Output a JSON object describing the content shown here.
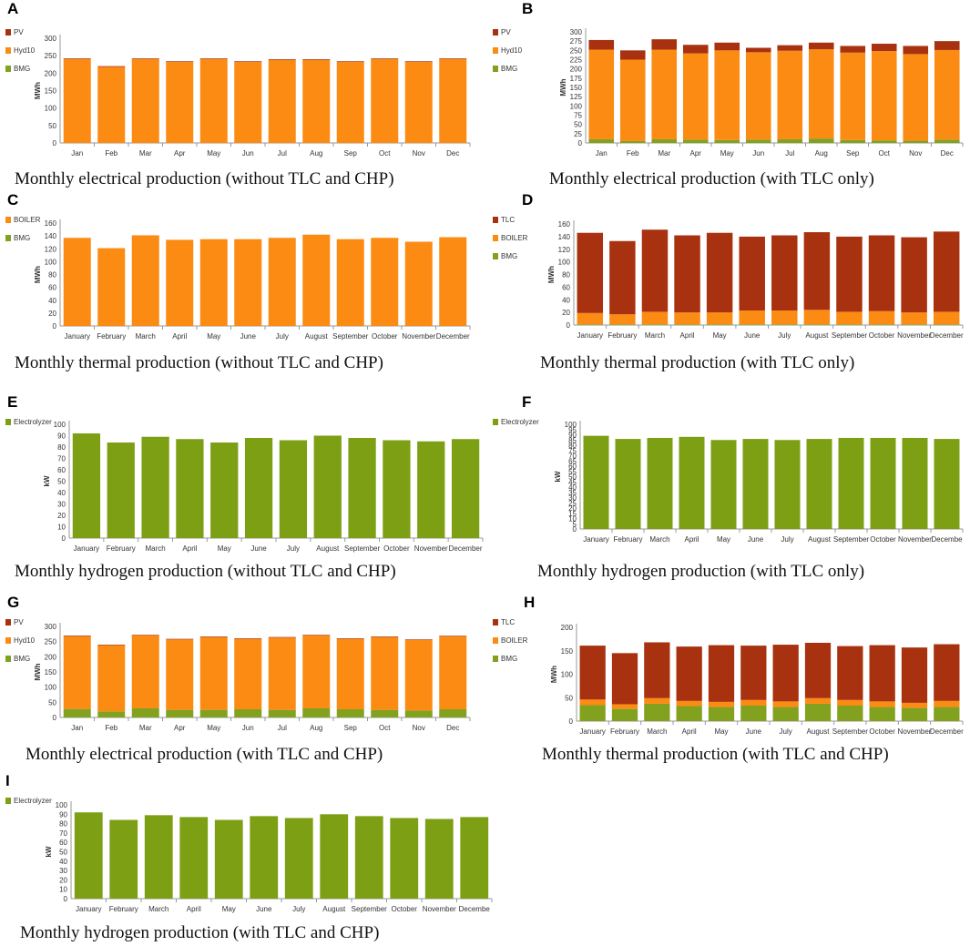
{
  "colors": {
    "PV": "#a8320f",
    "TLC": "#a8320f",
    "Hyd10": "#fb8b13",
    "BOILER": "#fb8b13",
    "BMG": "#82a21f",
    "Electrolyzer": "#7c9f14",
    "axis": "#999999"
  },
  "chart_data": [
    {
      "id": "A",
      "type": "bar",
      "label": "A",
      "caption": "Monthly electrical production (without TLC and CHP)",
      "ylabel": "MWh",
      "ylim": [
        0,
        300
      ],
      "yticks": [
        0,
        50,
        100,
        150,
        200,
        250,
        300
      ],
      "categories": [
        "Jan",
        "Feb",
        "Mar",
        "Apr",
        "May",
        "Jun",
        "Jul",
        "Aug",
        "Sep",
        "Oct",
        "Nov",
        "Dec"
      ],
      "legend": [
        "PV",
        "Hyd10",
        "BMG"
      ],
      "series": [
        {
          "name": "BMG",
          "values": [
            0,
            0,
            0,
            0,
            0,
            0,
            0,
            0,
            0,
            0,
            0,
            0
          ]
        },
        {
          "name": "Hyd10",
          "values": [
            240,
            218,
            240,
            232,
            240,
            232,
            238,
            238,
            232,
            240,
            232,
            240
          ]
        },
        {
          "name": "PV",
          "values": [
            2,
            2,
            2,
            2,
            2,
            2,
            2,
            2,
            2,
            2,
            2,
            2
          ]
        }
      ]
    },
    {
      "id": "B",
      "type": "bar",
      "label": "B",
      "caption": "Monthly electrical production (with TLC only)",
      "ylabel": "MWh",
      "ylim": [
        0,
        300
      ],
      "yticks": [
        0,
        25,
        50,
        75,
        100,
        125,
        150,
        175,
        200,
        225,
        250,
        275,
        300
      ],
      "categories": [
        "Jan",
        "Feb",
        "Mar",
        "Apr",
        "May",
        "Jun",
        "Jul",
        "Aug",
        "Sep",
        "Oct",
        "Nov",
        "Dec"
      ],
      "legend": [
        "PV",
        "Hyd10",
        "BMG"
      ],
      "series": [
        {
          "name": "BMG",
          "values": [
            10,
            5,
            10,
            9,
            8,
            9,
            10,
            12,
            8,
            7,
            6,
            9
          ]
        },
        {
          "name": "Hyd10",
          "values": [
            242,
            220,
            242,
            233,
            242,
            236,
            239,
            241,
            236,
            241,
            234,
            242
          ]
        },
        {
          "name": "PV",
          "values": [
            26,
            25,
            28,
            23,
            21,
            12,
            15,
            18,
            18,
            20,
            22,
            24
          ]
        }
      ]
    },
    {
      "id": "C",
      "type": "bar",
      "label": "C",
      "caption": "Monthly thermal production (without TLC and CHP)",
      "ylabel": "MWh",
      "ylim": [
        0,
        160
      ],
      "yticks": [
        0,
        20,
        40,
        60,
        80,
        100,
        120,
        140,
        160
      ],
      "categories": [
        "January",
        "February",
        "March",
        "April",
        "May",
        "June",
        "July",
        "August",
        "September",
        "October",
        "November",
        "December"
      ],
      "legend": [
        "BOILER",
        "BMG"
      ],
      "series": [
        {
          "name": "BMG",
          "values": [
            0,
            0,
            0,
            0,
            0,
            0,
            0,
            0,
            0,
            0,
            0,
            0
          ]
        },
        {
          "name": "BOILER",
          "values": [
            137,
            121,
            141,
            134,
            135,
            135,
            137,
            142,
            135,
            137,
            131,
            138
          ]
        }
      ]
    },
    {
      "id": "D",
      "type": "bar",
      "label": "D",
      "caption": "Monthly thermal production (with TLC only)",
      "ylabel": "MWh",
      "ylim": [
        0,
        160
      ],
      "yticks": [
        0,
        20,
        40,
        60,
        80,
        100,
        120,
        140,
        160
      ],
      "categories": [
        "January",
        "February",
        "March",
        "April",
        "May",
        "June",
        "July",
        "August",
        "September",
        "October",
        "November",
        "December"
      ],
      "legend": [
        "TLC",
        "BOILER",
        "BMG"
      ],
      "series": [
        {
          "name": "BMG",
          "values": [
            1,
            1,
            1,
            1,
            1,
            1,
            1,
            1,
            1,
            1,
            1,
            1
          ]
        },
        {
          "name": "BOILER",
          "values": [
            18,
            16,
            20,
            19,
            19,
            22,
            22,
            23,
            20,
            21,
            19,
            20
          ]
        },
        {
          "name": "TLC",
          "values": [
            127,
            116,
            130,
            122,
            126,
            117,
            119,
            123,
            119,
            120,
            119,
            127
          ]
        }
      ]
    },
    {
      "id": "E",
      "type": "bar",
      "label": "E",
      "caption": "Monthly hydrogen production (without TLC and CHP)",
      "ylabel": "kW",
      "ylim": [
        0,
        100
      ],
      "yticks": [
        0,
        10,
        20,
        30,
        40,
        50,
        60,
        70,
        80,
        90,
        100
      ],
      "categories": [
        "January",
        "February",
        "March",
        "April",
        "May",
        "June",
        "July",
        "August",
        "September",
        "October",
        "November",
        "December"
      ],
      "legend": [
        "Electrolyzer"
      ],
      "series": [
        {
          "name": "Electrolyzer",
          "values": [
            92,
            84,
            89,
            87,
            84,
            88,
            86,
            90,
            88,
            86,
            85,
            87
          ]
        }
      ]
    },
    {
      "id": "F",
      "type": "bar",
      "label": "F",
      "caption": "Monthly hydrogen production (with TLC only)",
      "ylabel": "kW",
      "ylim": [
        0,
        100
      ],
      "yticks": [
        0,
        5,
        10,
        15,
        20,
        25,
        30,
        35,
        40,
        45,
        50,
        55,
        60,
        65,
        70,
        75,
        80,
        85,
        90,
        95,
        100
      ],
      "categories": [
        "January",
        "February",
        "March",
        "April",
        "May",
        "June",
        "July",
        "August",
        "September",
        "October",
        "November",
        "Decembe"
      ],
      "legend": [
        "Electrolyzer"
      ],
      "series": [
        {
          "name": "Electrolyzer",
          "values": [
            89,
            86,
            87,
            88,
            85,
            86,
            85,
            86,
            87,
            87,
            87,
            86
          ]
        }
      ]
    },
    {
      "id": "G",
      "type": "bar",
      "label": "G",
      "caption": "Monthly electrical production (with TLC and CHP)",
      "ylabel": "MWh",
      "ylim": [
        0,
        300
      ],
      "yticks": [
        0,
        50,
        100,
        150,
        200,
        250,
        300
      ],
      "categories": [
        "Jan",
        "Feb",
        "Mar",
        "Apr",
        "May",
        "Jun",
        "Jul",
        "Aug",
        "Sep",
        "Oct",
        "Nov",
        "Dec"
      ],
      "legend": [
        "PV",
        "Hyd10",
        "BMG"
      ],
      "series": [
        {
          "name": "BMG",
          "values": [
            28,
            20,
            30,
            25,
            25,
            27,
            25,
            30,
            27,
            25,
            23,
            27
          ]
        },
        {
          "name": "Hyd10",
          "values": [
            240,
            218,
            240,
            232,
            240,
            232,
            238,
            240,
            232,
            240,
            232,
            240
          ]
        },
        {
          "name": "PV",
          "values": [
            2,
            2,
            2,
            2,
            2,
            2,
            2,
            2,
            2,
            2,
            2,
            2
          ]
        }
      ]
    },
    {
      "id": "H",
      "type": "bar",
      "label": "H",
      "caption": "Monthly thermal production (with TLC and CHP)",
      "ylabel": "MWh",
      "ylim": [
        0,
        200
      ],
      "yticks": [
        0,
        50,
        100,
        150,
        200
      ],
      "categories": [
        "January",
        "February",
        "March",
        "April",
        "May",
        "June",
        "July",
        "August",
        "September",
        "October",
        "November",
        "December"
      ],
      "legend": [
        "TLC",
        "BOILER",
        "BMG"
      ],
      "series": [
        {
          "name": "BMG",
          "values": [
            34,
            26,
            37,
            32,
            30,
            33,
            30,
            37,
            33,
            30,
            28,
            30
          ]
        },
        {
          "name": "BOILER",
          "values": [
            12,
            10,
            12,
            11,
            11,
            12,
            12,
            12,
            12,
            12,
            11,
            13
          ]
        },
        {
          "name": "TLC",
          "values": [
            115,
            109,
            119,
            116,
            121,
            116,
            121,
            118,
            115,
            120,
            118,
            121
          ]
        }
      ]
    },
    {
      "id": "I",
      "type": "bar",
      "label": "I",
      "caption": "Monthly hydrogen production (with TLC and CHP)",
      "ylabel": "kW",
      "ylim": [
        0,
        100
      ],
      "yticks": [
        0,
        10,
        20,
        30,
        40,
        50,
        60,
        70,
        80,
        90,
        100
      ],
      "categories": [
        "January",
        "February",
        "March",
        "April",
        "May",
        "June",
        "July",
        "August",
        "September",
        "October",
        "November",
        "Decembe"
      ],
      "legend": [
        "Electrolyzer"
      ],
      "series": [
        {
          "name": "Electrolyzer",
          "values": [
            92,
            84,
            89,
            87,
            84,
            88,
            86,
            90,
            88,
            86,
            85,
            87
          ]
        }
      ]
    }
  ]
}
